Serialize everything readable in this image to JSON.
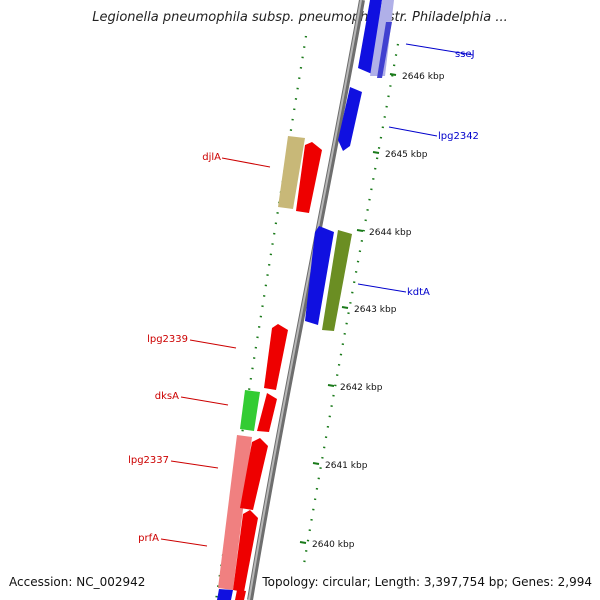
{
  "title": "Legionella pneumophila subsp. pneumophila str. Philadelphia ...",
  "footer": {
    "accession": "Accession: NC_002942",
    "topology": "Topology: circular; Length: 3,397,754 bp; Genes: 2,994"
  },
  "colors": {
    "backbone": "#8a8a8a",
    "forward_label": "#cc0000",
    "reverse_label": "#0000cc",
    "ticks": "#1a7a1a"
  },
  "ruler": [
    {
      "label": "2646 kbp",
      "kbp": 2646
    },
    {
      "label": "2645 kbp",
      "kbp": 2645
    },
    {
      "label": "2644 kbp",
      "kbp": 2644
    },
    {
      "label": "2643 kbp",
      "kbp": 2643
    },
    {
      "label": "2642 kbp",
      "kbp": 2642
    },
    {
      "label": "2641 kbp",
      "kbp": 2641
    },
    {
      "label": "2640 kbp",
      "kbp": 2640
    }
  ],
  "gene_labels": [
    {
      "name": "sseJ",
      "strand": "reverse"
    },
    {
      "name": "lpg2342",
      "strand": "reverse"
    },
    {
      "name": "kdtA",
      "strand": "reverse"
    },
    {
      "name": "djlA",
      "strand": "forward"
    },
    {
      "name": "lpg2339",
      "strand": "forward"
    },
    {
      "name": "dksA",
      "strand": "forward"
    },
    {
      "name": "lpg2337",
      "strand": "forward"
    },
    {
      "name": "prfA",
      "strand": "forward"
    }
  ]
}
